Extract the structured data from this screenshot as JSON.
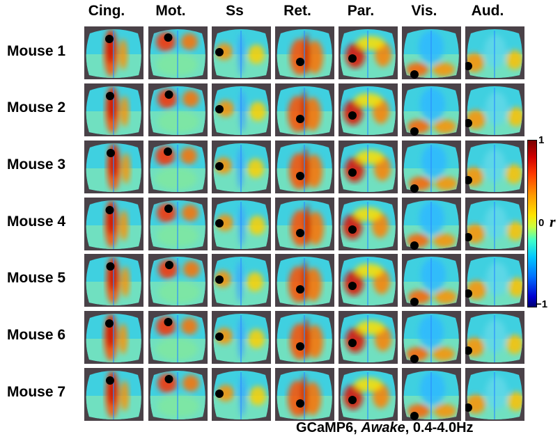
{
  "columns": [
    "Cing.",
    "Mot.",
    "Ss",
    "Ret.",
    "Par.",
    "Vis.",
    "Aud."
  ],
  "rows": [
    "Mouse 1",
    "Mouse 2",
    "Mouse 3",
    "Mouse 4",
    "Mouse 5",
    "Mouse 6",
    "Mouse 7"
  ],
  "colorbar": {
    "max_label": "1",
    "mid_label": "0",
    "min_label": "−1",
    "symbol": "r"
  },
  "caption": {
    "part1": "GCaMP6, ",
    "part2": "Awake",
    "part3": ", 0.4-4.0Hz"
  },
  "colors": {
    "high": "#d10000",
    "mid": "#ffe400",
    "low": "#0000d0",
    "background_map": "#3fd0e0"
  }
}
